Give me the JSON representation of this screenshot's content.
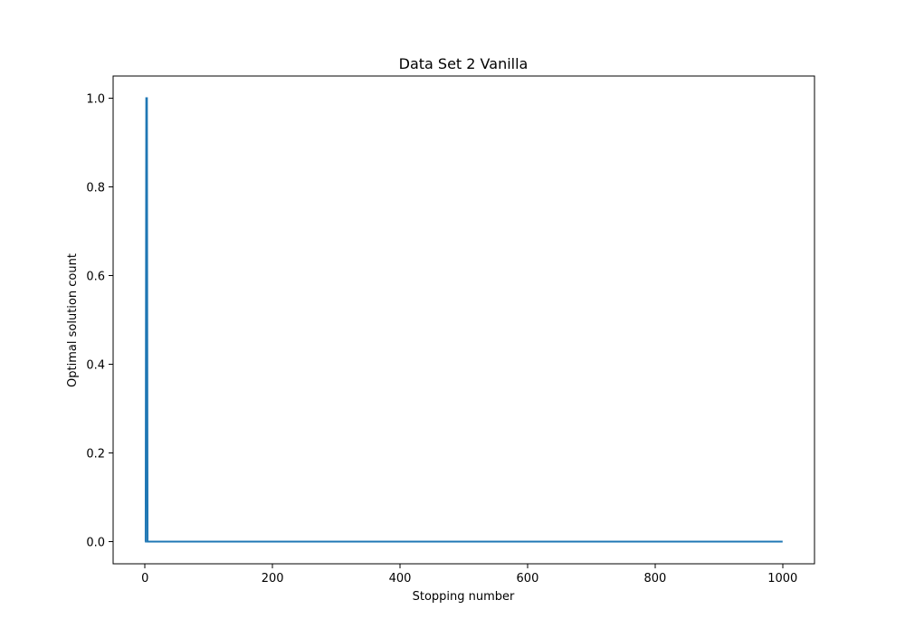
{
  "chart_data": {
    "type": "line",
    "title": "Data Set 2 Vanilla",
    "xlabel": "Stopping number",
    "ylabel": "Optimal solution count",
    "xlim": [
      -50,
      1050
    ],
    "ylim": [
      -0.05,
      1.05
    ],
    "xticks": [
      0,
      200,
      400,
      600,
      800,
      1000
    ],
    "xtick_labels": [
      "0",
      "200",
      "400",
      "600",
      "800",
      "1000"
    ],
    "yticks": [
      0.0,
      0.2,
      0.4,
      0.6,
      0.8,
      1.0
    ],
    "ytick_labels": [
      "0.0",
      "0.2",
      "0.4",
      "0.6",
      "0.8",
      "1.0"
    ],
    "grid": false,
    "series": [
      {
        "color": "#1f77b4",
        "x": [
          0,
          1,
          2,
          3,
          4,
          5,
          1000
        ],
        "y": [
          0,
          0,
          1,
          1,
          0,
          0,
          0
        ]
      }
    ]
  }
}
